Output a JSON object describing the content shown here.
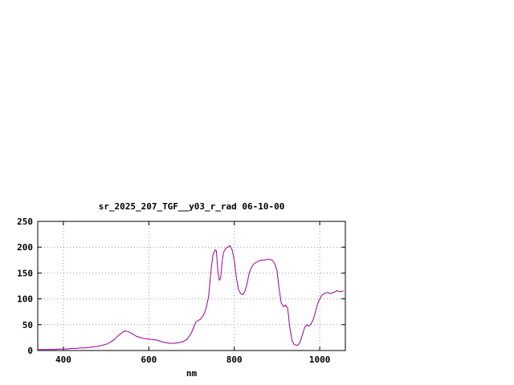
{
  "chart_data": {
    "type": "line",
    "title": "sr_2025_207_TGF__y03_r_rad 06-10-00",
    "xlabel": "nm",
    "ylabel": "",
    "xlim": [
      340,
      1060
    ],
    "ylim": [
      0,
      250
    ],
    "x_ticks": [
      400,
      600,
      800,
      1000
    ],
    "y_ticks": [
      0,
      50,
      100,
      150,
      200,
      250
    ],
    "grid": true,
    "legend": "none",
    "background_color": "#ffffff",
    "grid_color": "#999999",
    "axis_color": "#000000",
    "line_color": "#990099",
    "series": [
      {
        "name": "sr_2025_207_TGF__y03_r_rad 06-10-00",
        "x": [
          340,
          350,
          360,
          370,
          380,
          390,
          400,
          410,
          420,
          430,
          440,
          450,
          460,
          470,
          480,
          490,
          500,
          510,
          520,
          530,
          540,
          545,
          550,
          560,
          570,
          580,
          590,
          600,
          610,
          620,
          630,
          640,
          650,
          660,
          670,
          680,
          690,
          700,
          705,
          710,
          715,
          720,
          725,
          730,
          735,
          740,
          745,
          750,
          755,
          758,
          762,
          765,
          768,
          772,
          775,
          780,
          785,
          790,
          795,
          800,
          805,
          810,
          815,
          820,
          825,
          830,
          835,
          840,
          845,
          850,
          855,
          860,
          865,
          870,
          875,
          880,
          885,
          890,
          895,
          900,
          905,
          910,
          915,
          920,
          925,
          930,
          935,
          940,
          945,
          950,
          955,
          960,
          965,
          970,
          975,
          980,
          985,
          990,
          995,
          1000,
          1005,
          1010,
          1015,
          1020,
          1025,
          1030,
          1035,
          1040,
          1045,
          1050,
          1055
        ],
        "y": [
          2,
          2,
          2,
          2,
          2,
          3,
          3,
          3,
          4,
          4,
          5,
          5,
          6,
          7,
          8,
          10,
          12,
          16,
          22,
          30,
          36,
          38,
          37,
          33,
          28,
          25,
          23,
          22,
          21,
          20,
          17,
          15,
          14,
          14,
          15,
          17,
          22,
          35,
          45,
          55,
          58,
          60,
          65,
          72,
          85,
          105,
          150,
          185,
          195,
          193,
          150,
          136,
          140,
          175,
          190,
          198,
          200,
          203,
          195,
          175,
          140,
          118,
          110,
          108,
          115,
          130,
          150,
          160,
          167,
          170,
          172,
          174,
          175,
          175,
          176,
          177,
          176,
          174,
          168,
          155,
          120,
          92,
          85,
          88,
          82,
          45,
          20,
          12,
          10,
          11,
          18,
          32,
          45,
          50,
          47,
          52,
          60,
          75,
          90,
          100,
          107,
          110,
          112,
          112,
          110,
          112,
          113,
          116,
          114,
          114,
          115
        ]
      }
    ]
  }
}
